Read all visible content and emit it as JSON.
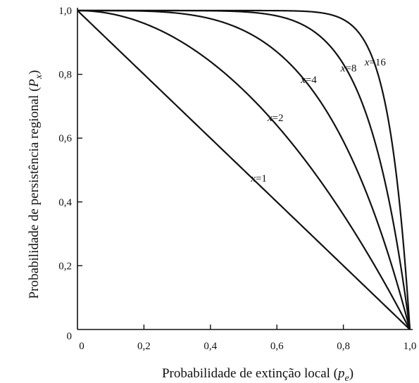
{
  "chart_data": {
    "type": "line",
    "xlabel": "Probabilidade de extinção local (p_e)",
    "xlabel_parts": {
      "main": "Probabilidade de extinção local (",
      "var": "p",
      "sub": "e",
      "close": ")"
    },
    "ylabel": "Probabilidade de persistência regional (P_x)",
    "ylabel_parts": {
      "main": "Probabilidade de persistência regional (",
      "var": "P",
      "sub": "x",
      "close": ")"
    },
    "xlim": [
      0,
      1
    ],
    "ylim": [
      0,
      1
    ],
    "grid": false,
    "x_ticks": [
      0,
      0.2,
      0.4,
      0.6,
      0.8,
      1.0
    ],
    "x_tick_labels": [
      "0",
      "0,2",
      "0,4",
      "0,6",
      "0,8",
      "1,0"
    ],
    "y_ticks": [
      0,
      0.2,
      0.4,
      0.6,
      0.8,
      1.0
    ],
    "y_tick_labels": [
      "0",
      "0,2",
      "0,4",
      "0,6",
      "0,8",
      "1,0"
    ],
    "function": "P_x = 1 - p_e^x",
    "series": [
      {
        "name": "x=1",
        "x_value": 1,
        "label_var": "x",
        "label_value": "=1"
      },
      {
        "name": "x=2",
        "x_value": 2,
        "label_var": "x",
        "label_value": "=2"
      },
      {
        "name": "x=4",
        "x_value": 4,
        "label_var": "x",
        "label_value": "=4"
      },
      {
        "name": "x=8",
        "x_value": 8,
        "label_var": "x",
        "label_value": "=8"
      },
      {
        "name": "x=16",
        "x_value": 16,
        "label_var": "x",
        "label_value": "=16"
      }
    ],
    "label_anchor_pe": [
      0.55,
      0.6,
      0.7,
      0.82,
      0.9
    ],
    "colors": {
      "line": "#111111",
      "background": "#ffffff"
    }
  }
}
